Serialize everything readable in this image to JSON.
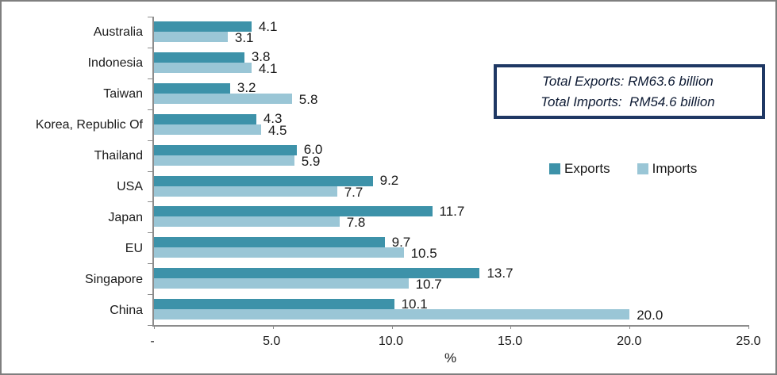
{
  "frame": {
    "background": "#ffffff",
    "border_color": "#7f7f7f",
    "axis_color": "#8c8c8c"
  },
  "chart_data": {
    "type": "bar",
    "orientation": "horizontal",
    "title": "",
    "xlabel": "%",
    "ylabel": "",
    "xlim": [
      0,
      25
    ],
    "grid": false,
    "legend_position": "right-center",
    "categories": [
      "Australia",
      "Indonesia",
      "Taiwan",
      "Korea, Republic Of",
      "Thailand",
      "USA",
      "Japan",
      "EU",
      "Singapore",
      "China"
    ],
    "series": [
      {
        "name": "Exports",
        "color": "#3d92a9",
        "values": [
          4.1,
          3.8,
          3.2,
          4.3,
          6.0,
          9.2,
          11.7,
          9.7,
          13.7,
          10.1
        ]
      },
      {
        "name": "Imports",
        "color": "#9ac6d6",
        "values": [
          3.1,
          4.1,
          5.8,
          4.5,
          5.9,
          7.7,
          7.8,
          10.5,
          10.7,
          20.0
        ]
      }
    ],
    "x_ticks": [
      {
        "value": 0,
        "label": "-"
      },
      {
        "value": 5,
        "label": "5.0"
      },
      {
        "value": 10,
        "label": "10.0"
      },
      {
        "value": 15,
        "label": "15.0"
      },
      {
        "value": 20,
        "label": "20.0"
      },
      {
        "value": 25,
        "label": "25.0"
      }
    ]
  },
  "legend": {
    "items": [
      {
        "label": "Exports",
        "color": "#3d92a9"
      },
      {
        "label": "Imports",
        "color": "#9ac6d6"
      }
    ]
  },
  "annotation": {
    "border_color": "#1f3864",
    "line1": "Total Exports: RM63.6 billion",
    "line2": "Total Imports:  RM54.6 billion"
  }
}
